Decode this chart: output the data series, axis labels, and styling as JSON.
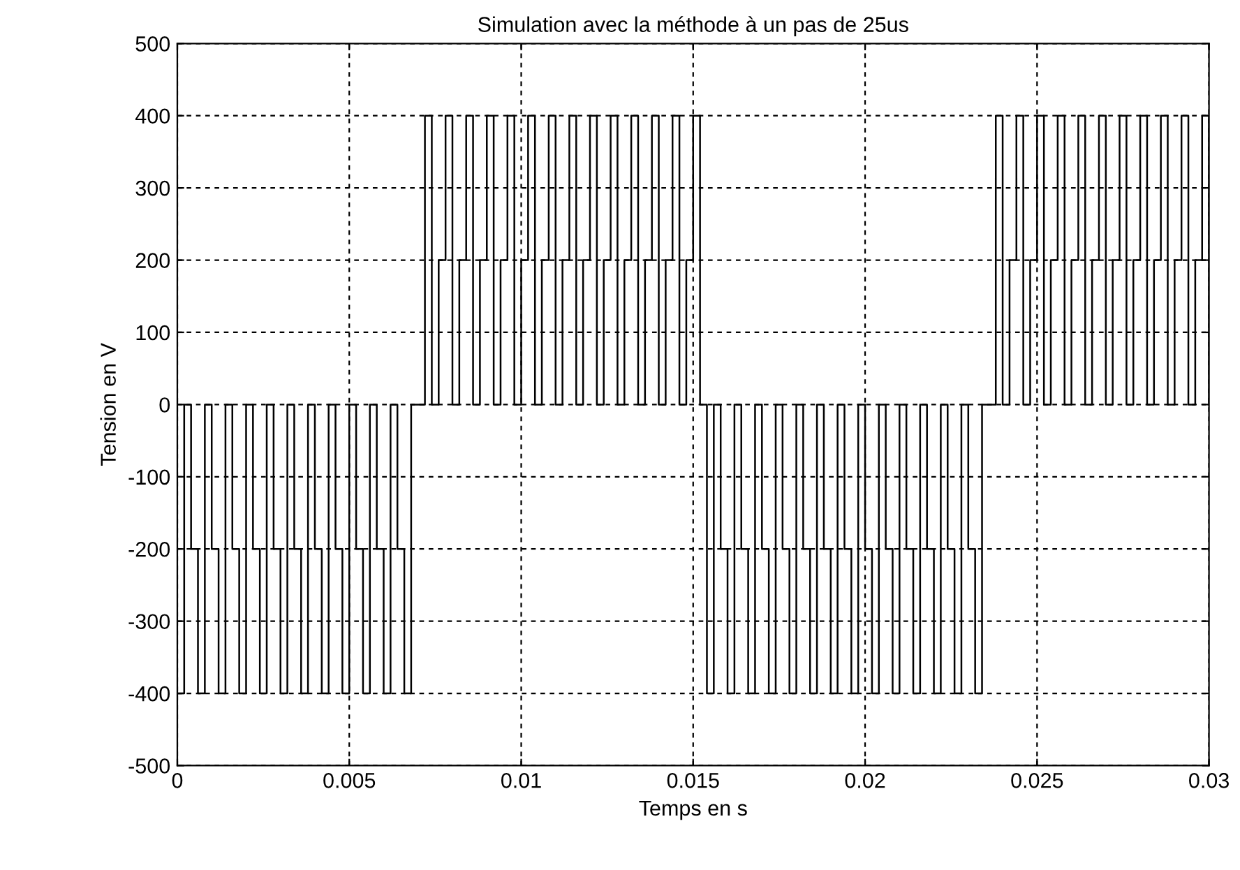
{
  "chart_data": {
    "type": "step",
    "title": "Simulation avec la méthode à un pas de 25us",
    "xlabel": "Temps en s",
    "ylabel": "Tension en V",
    "xlim": [
      0,
      0.03
    ],
    "xticks": [
      0,
      0.005,
      0.01,
      0.015,
      0.02,
      0.025,
      0.03
    ],
    "ylim": [
      -500,
      500
    ],
    "yticks": [
      -500,
      -400,
      -300,
      -200,
      -100,
      0,
      100,
      200,
      300,
      400,
      500
    ],
    "grid": true,
    "line_style": "solid",
    "series": [
      {
        "color": "#000000",
        "x": [
          0,
          0.0002,
          0.0004,
          0.0006,
          0.0008,
          0.001,
          0.0012,
          0.0014,
          0.0016,
          0.0018,
          0.002,
          0.0022,
          0.0024,
          0.0026,
          0.0028,
          0.003,
          0.0032,
          0.0034,
          0.0036,
          0.0038,
          0.004,
          0.0042,
          0.0044,
          0.0046,
          0.0048,
          0.005,
          0.0052,
          0.0054,
          0.0056,
          0.0058,
          0.006,
          0.0062,
          0.0064,
          0.0066,
          0.0068,
          0.007,
          0.0072,
          0.0074,
          0.0076,
          0.0078,
          0.008,
          0.0082,
          0.0084,
          0.0086,
          0.0088,
          0.009,
          0.0092,
          0.0094,
          0.0096,
          0.0098,
          0.01,
          0.0102,
          0.0104,
          0.0106,
          0.0108,
          0.011,
          0.0112,
          0.0114,
          0.0116,
          0.0118,
          0.012,
          0.0122,
          0.0124,
          0.0126,
          0.0128,
          0.013,
          0.0132,
          0.0134,
          0.0136,
          0.0138,
          0.014,
          0.0142,
          0.0144,
          0.0146,
          0.0148,
          0.015,
          0.0152,
          0.0154,
          0.0156,
          0.0158,
          0.016,
          0.0162,
          0.0164,
          0.0166,
          0.0168,
          0.017,
          0.0172,
          0.0174,
          0.0176,
          0.0178,
          0.018,
          0.0182,
          0.0184,
          0.0186,
          0.0188,
          0.019,
          0.0192,
          0.0194,
          0.0196,
          0.0198,
          0.02,
          0.0202,
          0.0204,
          0.0206,
          0.0208,
          0.021,
          0.0212,
          0.0214,
          0.0216,
          0.0218,
          0.022,
          0.0222,
          0.0224,
          0.0226,
          0.0228,
          0.023,
          0.0232,
          0.0234,
          0.0236,
          0.0238,
          0.024,
          0.0242,
          0.0244,
          0.0246,
          0.0248,
          0.025,
          0.0252,
          0.0254,
          0.0256,
          0.0258,
          0.026,
          0.0262,
          0.0264,
          0.0266,
          0.0268,
          0.027,
          0.0272,
          0.0274,
          0.0276,
          0.0278,
          0.028,
          0.0282,
          0.0284,
          0.0286,
          0.0288,
          0.029,
          0.0292,
          0.0294,
          0.0296,
          0.0298,
          0.03
        ],
        "values": [
          -400,
          0,
          -200,
          -400,
          0,
          -200,
          -400,
          0,
          -200,
          -400,
          0,
          -200,
          -400,
          0,
          -200,
          -400,
          0,
          -200,
          -400,
          0,
          -200,
          -400,
          0,
          -200,
          -400,
          0,
          -200,
          -400,
          0,
          -200,
          -400,
          0,
          -200,
          -400,
          0,
          0,
          400,
          0,
          200,
          400,
          0,
          200,
          400,
          0,
          200,
          400,
          0,
          200,
          400,
          0,
          200,
          400,
          0,
          200,
          400,
          0,
          200,
          400,
          0,
          200,
          400,
          0,
          200,
          400,
          0,
          200,
          400,
          0,
          200,
          400,
          0,
          200,
          400,
          0,
          200,
          400,
          0,
          -400,
          0,
          -200,
          -400,
          0,
          -200,
          -400,
          0,
          -200,
          -400,
          0,
          -200,
          -400,
          0,
          -200,
          -400,
          0,
          -200,
          -400,
          0,
          -200,
          -400,
          0,
          -200,
          -400,
          0,
          -200,
          -400,
          0,
          -200,
          -400,
          0,
          -200,
          -400,
          0,
          -200,
          -400,
          0,
          -200,
          -400,
          0,
          0,
          400,
          0,
          200,
          400,
          0,
          200,
          400,
          0,
          200,
          400,
          0,
          200,
          400,
          0,
          200,
          400,
          0,
          200,
          400,
          0,
          200,
          400,
          0,
          200,
          400,
          0,
          200,
          400,
          0,
          200,
          400,
          0
        ]
      }
    ]
  }
}
